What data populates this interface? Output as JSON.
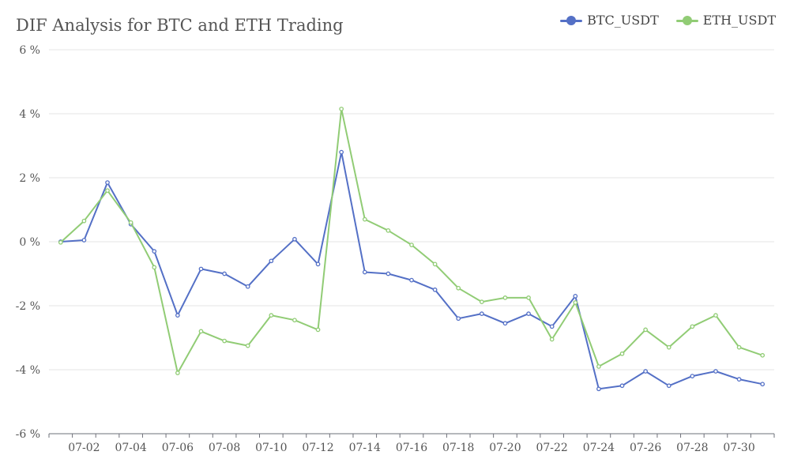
{
  "chart_data": {
    "type": "line",
    "title": "DIF Analysis for BTC and ETH Trading",
    "xlabel": "",
    "ylabel": "",
    "ylim": [
      -6,
      6
    ],
    "y_ticks": [
      -6,
      -4,
      -2,
      0,
      2,
      4,
      6
    ],
    "y_tick_labels": [
      "-6 %",
      "-4 %",
      "-2 %",
      "0 %",
      "2 %",
      "4 %",
      "6 %"
    ],
    "x": [
      "07-01",
      "07-02",
      "07-03",
      "07-04",
      "07-05",
      "07-06",
      "07-07",
      "07-08",
      "07-09",
      "07-10",
      "07-11",
      "07-12",
      "07-13",
      "07-14",
      "07-15",
      "07-16",
      "07-17",
      "07-18",
      "07-19",
      "07-20",
      "07-21",
      "07-22",
      "07-23",
      "07-24",
      "07-25",
      "07-26",
      "07-27",
      "07-28",
      "07-29",
      "07-30",
      "07-31"
    ],
    "x_tick_labels": [
      "07-02",
      "07-04",
      "07-06",
      "07-08",
      "07-10",
      "07-12",
      "07-14",
      "07-16",
      "07-18",
      "07-20",
      "07-22",
      "07-24",
      "07-26",
      "07-28",
      "07-30"
    ],
    "grid": true,
    "legend_position": "top-right",
    "series": [
      {
        "name": "BTC_USDT",
        "color": "#5470c6",
        "values": [
          0.0,
          0.05,
          1.85,
          0.55,
          -0.3,
          -2.3,
          -0.85,
          -1.0,
          -1.4,
          -0.6,
          0.08,
          -0.7,
          2.8,
          -0.95,
          -1.0,
          -1.2,
          -1.5,
          -2.4,
          -2.25,
          -2.55,
          -2.25,
          -2.65,
          -1.7,
          -4.6,
          -4.5,
          -4.05,
          -4.5,
          -4.2,
          -4.05,
          -4.3,
          -4.45
        ]
      },
      {
        "name": "ETH_USDT",
        "color": "#91cc75",
        "values": [
          -0.02,
          0.65,
          1.6,
          0.6,
          -0.8,
          -4.1,
          -2.8,
          -3.1,
          -3.25,
          -2.3,
          -2.45,
          -2.75,
          4.15,
          0.7,
          0.35,
          -0.1,
          -0.7,
          -1.45,
          -1.88,
          -1.75,
          -1.75,
          -3.05,
          -1.9,
          -3.9,
          -3.5,
          -2.75,
          -3.3,
          -2.65,
          -2.3,
          -3.3,
          -3.55
        ]
      }
    ]
  }
}
